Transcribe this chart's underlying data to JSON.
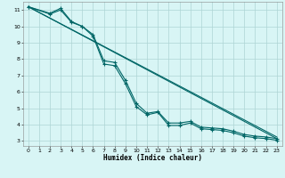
{
  "title": "",
  "xlabel": "Humidex (Indice chaleur)",
  "bg_color": "#d8f5f5",
  "grid_color": "#aed4d4",
  "line_color": "#006666",
  "xlim": [
    -0.5,
    23.5
  ],
  "ylim": [
    2.7,
    11.5
  ],
  "xticks": [
    0,
    1,
    2,
    3,
    4,
    5,
    6,
    7,
    8,
    9,
    10,
    11,
    12,
    13,
    14,
    15,
    16,
    17,
    18,
    19,
    20,
    21,
    22,
    23
  ],
  "yticks": [
    3,
    4,
    5,
    6,
    7,
    8,
    9,
    10,
    11
  ],
  "line1_x": [
    0,
    2,
    3,
    4,
    5,
    6,
    7,
    8,
    9,
    10,
    11,
    12,
    13,
    14,
    15,
    16,
    17,
    18,
    19,
    20,
    21,
    22,
    23
  ],
  "line1_y": [
    11.2,
    10.8,
    11.1,
    10.3,
    10.0,
    9.5,
    7.9,
    7.8,
    6.7,
    5.3,
    4.7,
    4.8,
    4.1,
    4.1,
    4.2,
    3.85,
    3.8,
    3.75,
    3.6,
    3.4,
    3.3,
    3.25,
    3.15
  ],
  "line2_x": [
    0,
    2,
    3,
    4,
    5,
    6,
    7,
    8,
    9,
    10,
    11,
    12,
    13,
    14,
    15,
    16,
    17,
    18,
    19,
    20,
    21,
    22,
    23
  ],
  "line2_y": [
    11.2,
    10.75,
    11.0,
    10.25,
    10.0,
    9.4,
    7.7,
    7.6,
    6.5,
    5.1,
    4.6,
    4.75,
    3.95,
    3.95,
    4.1,
    3.75,
    3.7,
    3.65,
    3.5,
    3.3,
    3.2,
    3.15,
    3.05
  ],
  "line3_x": [
    0,
    23
  ],
  "line3_y": [
    11.2,
    3.15
  ],
  "line4_x": [
    0,
    23
  ],
  "line4_y": [
    11.2,
    3.25
  ]
}
